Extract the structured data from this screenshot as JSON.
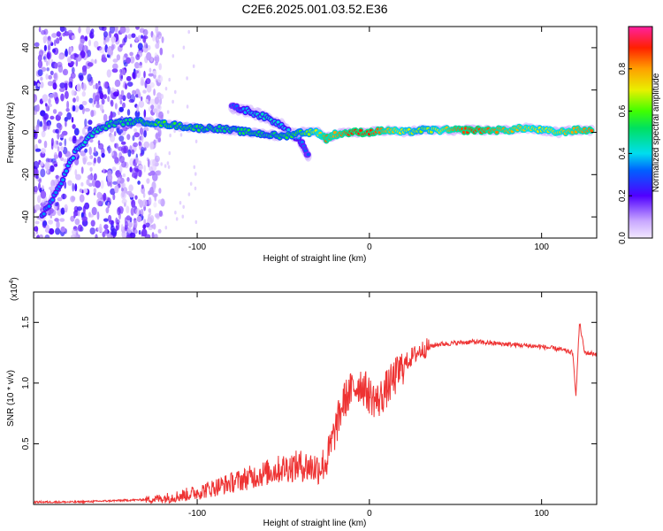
{
  "title": "C2E6.2025.001.03.52.E36",
  "colors": {
    "snr_line": "#ee3333",
    "axis": "#000000",
    "spec_low": "#ddccf5",
    "spec_mid": "#7a1fe0",
    "spec_peak": "#ff2200"
  },
  "chart_data": [
    {
      "type": "heatmap",
      "name": "spectrogram",
      "xlabel": "Height of straight line (km)",
      "ylabel": "Frequency (Hz)",
      "xlim": [
        -195,
        132
      ],
      "ylim": [
        -50,
        50
      ],
      "xticks": [
        -100,
        0,
        100
      ],
      "yticks": [
        -40,
        -20,
        0,
        20,
        40
      ],
      "grid": false,
      "colorbar": {
        "label": "Normalized spectral amplitude",
        "range": [
          0,
          1
        ],
        "ticks": [
          0.0,
          0.2,
          0.4,
          0.6,
          0.8
        ],
        "colormap": "rainbow"
      },
      "main_trace": [
        {
          "x": -190,
          "y": -40,
          "a": 0.35
        },
        {
          "x": -180,
          "y": -25,
          "a": 0.35
        },
        {
          "x": -170,
          "y": -8,
          "a": 0.4
        },
        {
          "x": -160,
          "y": 0,
          "a": 0.45
        },
        {
          "x": -150,
          "y": 4,
          "a": 0.5
        },
        {
          "x": -140,
          "y": 5,
          "a": 0.5
        },
        {
          "x": -130,
          "y": 5,
          "a": 0.55
        },
        {
          "x": -120,
          "y": 4,
          "a": 0.6
        },
        {
          "x": -110,
          "y": 3,
          "a": 0.55
        },
        {
          "x": -100,
          "y": 2,
          "a": 0.55
        },
        {
          "x": -90,
          "y": 2,
          "a": 0.5
        },
        {
          "x": -80,
          "y": 1,
          "a": 0.5
        },
        {
          "x": -70,
          "y": 0,
          "a": 0.55
        },
        {
          "x": -60,
          "y": -1,
          "a": 0.5
        },
        {
          "x": -50,
          "y": -2,
          "a": 0.55
        },
        {
          "x": -40,
          "y": 0,
          "a": 0.6
        },
        {
          "x": -30,
          "y": 0,
          "a": 0.7
        },
        {
          "x": -25,
          "y": -3,
          "a": 0.85
        },
        {
          "x": -20,
          "y": -1,
          "a": 0.8
        },
        {
          "x": -10,
          "y": 0,
          "a": 0.9
        },
        {
          "x": 0,
          "y": 0,
          "a": 0.9
        },
        {
          "x": 10,
          "y": 1,
          "a": 0.8
        },
        {
          "x": 20,
          "y": 0,
          "a": 0.7
        },
        {
          "x": 30,
          "y": 1,
          "a": 0.65
        },
        {
          "x": 40,
          "y": 1,
          "a": 0.7
        },
        {
          "x": 50,
          "y": 1,
          "a": 0.85
        },
        {
          "x": 60,
          "y": 1,
          "a": 0.9
        },
        {
          "x": 70,
          "y": 1,
          "a": 0.85
        },
        {
          "x": 80,
          "y": 1,
          "a": 0.8
        },
        {
          "x": 90,
          "y": 2,
          "a": 0.75
        },
        {
          "x": 100,
          "y": 1,
          "a": 0.7
        },
        {
          "x": 110,
          "y": 0,
          "a": 0.75
        },
        {
          "x": 120,
          "y": 1,
          "a": 0.8
        },
        {
          "x": 130,
          "y": 1,
          "a": 0.85
        }
      ],
      "secondary_trace": [
        {
          "x": -80,
          "y": 12,
          "a": 0.3
        },
        {
          "x": -70,
          "y": 10,
          "a": 0.4
        },
        {
          "x": -60,
          "y": 7,
          "a": 0.45
        },
        {
          "x": -50,
          "y": 3,
          "a": 0.4
        },
        {
          "x": -40,
          "y": -4,
          "a": 0.35
        },
        {
          "x": -35,
          "y": -12,
          "a": 0.3
        }
      ],
      "noise_region": {
        "x": [
          -195,
          -120
        ],
        "y": [
          -50,
          50
        ]
      }
    },
    {
      "type": "line",
      "name": "snr",
      "xlabel": "Height of straight line (km)",
      "ylabel": "SNR (10 * v/v)",
      "scale_note": "(x10",
      "scale_exp": "4",
      "xlim": [
        -195,
        132
      ],
      "ylim": [
        0,
        1.75
      ],
      "xticks": [
        -100,
        0,
        100
      ],
      "yticks": [
        0.5,
        1.0,
        1.5
      ],
      "grid": false,
      "series": [
        {
          "x": [
            -195,
            -170,
            -150,
            -130,
            -120,
            -110,
            -100,
            -90,
            -80,
            -70,
            -60,
            -50,
            -40,
            -30,
            -25,
            -20,
            -15,
            -10,
            -5,
            0,
            5,
            10,
            15,
            20,
            25,
            30,
            35,
            40,
            50,
            60,
            70,
            80,
            90,
            100,
            110,
            118,
            120,
            122,
            125,
            132
          ],
          "y": [
            0.02,
            0.02,
            0.03,
            0.04,
            0.05,
            0.07,
            0.1,
            0.14,
            0.18,
            0.22,
            0.26,
            0.3,
            0.32,
            0.3,
            0.35,
            0.6,
            0.85,
            0.95,
            1.0,
            0.9,
            0.85,
            0.95,
            1.05,
            1.15,
            1.22,
            1.27,
            1.3,
            1.32,
            1.33,
            1.34,
            1.33,
            1.32,
            1.31,
            1.3,
            1.28,
            1.25,
            0.9,
            1.5,
            1.25,
            1.24
          ]
        }
      ]
    }
  ]
}
